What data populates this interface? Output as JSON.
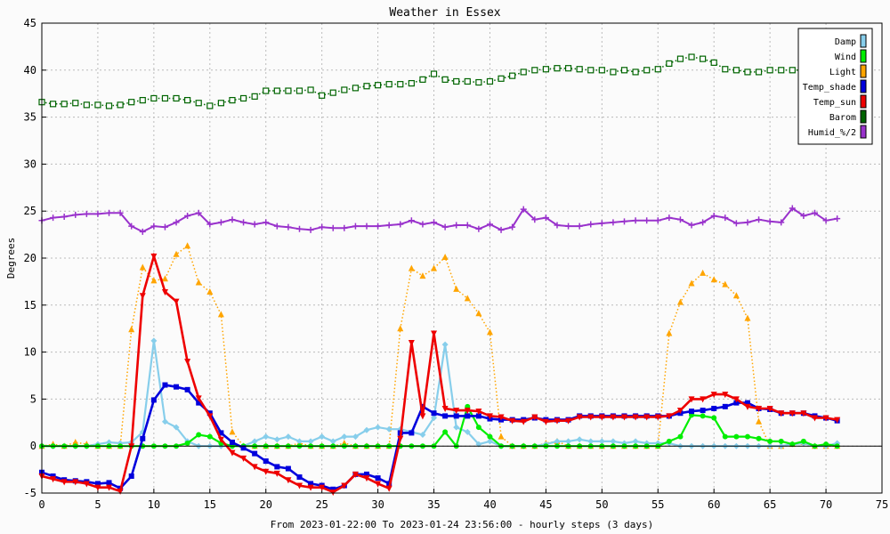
{
  "chart_data": {
    "type": "line",
    "title": "Weather in Essex",
    "xlabel": "From 2023-01-22:00 To 2023-01-24 23:56:00 - hourly steps (3 days)",
    "ylabel": "Degrees",
    "xlim": [
      0,
      75
    ],
    "ylim": [
      -5,
      45
    ],
    "xticks": [
      0,
      5,
      10,
      15,
      20,
      25,
      30,
      35,
      40,
      45,
      50,
      55,
      60,
      65,
      70,
      75
    ],
    "yticks": [
      -5,
      0,
      5,
      10,
      15,
      20,
      25,
      30,
      35,
      40,
      45
    ],
    "grid": true,
    "legend_position": "top-right",
    "series": [
      {
        "name": "Damp",
        "color": "#87ceeb",
        "style": "solid",
        "marker": "diamond",
        "values": [
          0,
          0,
          0,
          0,
          0,
          0.2,
          0.4,
          0.3,
          0.4,
          1.5,
          11.2,
          2.6,
          2,
          0.5,
          0,
          0,
          0,
          0,
          0,
          0.5,
          1,
          0.7,
          1,
          0.5,
          0.5,
          1,
          0.5,
          1,
          1,
          1.7,
          2,
          1.8,
          1.8,
          1.5,
          1.2,
          3,
          10.8,
          2,
          1.5,
          0.2,
          0.5,
          0,
          0,
          0,
          0,
          0.2,
          0.5,
          0.5,
          0.7,
          0.5,
          0.5,
          0.5,
          0.3,
          0.5,
          0.3,
          0.3,
          0.3,
          0,
          0,
          0,
          0,
          0,
          0,
          0,
          0,
          0,
          0,
          0.2,
          0.3,
          0,
          0,
          0.3
        ]
      },
      {
        "name": "Wind",
        "color": "#00ee00",
        "style": "solid",
        "marker": "circle",
        "values": [
          0,
          0,
          0,
          0,
          0,
          0,
          0,
          0,
          0,
          0,
          0,
          0,
          0,
          0.3,
          1.2,
          1,
          0.3,
          0,
          0,
          0,
          0,
          0,
          0,
          0,
          0,
          0,
          0,
          0,
          0,
          0,
          0,
          0,
          0,
          0,
          0,
          0,
          1.5,
          0,
          4.2,
          2,
          1,
          0,
          0,
          0,
          0,
          0,
          0,
          0,
          0,
          0,
          0,
          0,
          0,
          0,
          0,
          0,
          0.5,
          1,
          3.3,
          3.2,
          3,
          1,
          1,
          1,
          0.8,
          0.5,
          0.5,
          0.2,
          0.5,
          0,
          0.2,
          0
        ]
      },
      {
        "name": "Light",
        "color": "#ffa500",
        "style": "dotted",
        "marker": "triangle",
        "values": [
          0,
          0.2,
          0,
          0.4,
          0.2,
          0,
          0,
          0,
          12.4,
          19,
          17.6,
          17.8,
          20.4,
          21.3,
          17.4,
          16.4,
          14,
          1.5,
          0,
          0,
          0,
          0,
          0,
          0.3,
          0,
          0,
          0,
          0.3,
          0,
          0,
          0,
          0,
          12.5,
          18.9,
          18.1,
          18.9,
          20.1,
          16.7,
          15.7,
          14.1,
          12.1,
          1,
          0,
          0,
          0,
          0.3,
          0.5,
          0,
          0,
          0,
          0,
          0,
          0,
          0,
          0,
          0,
          12,
          15.3,
          17.3,
          18.4,
          17.7,
          17.2,
          16,
          13.6,
          2.6,
          0,
          0,
          0.2,
          0.4,
          0,
          0,
          0
        ]
      },
      {
        "name": "Temp_shade",
        "color": "#0000dd",
        "style": "solid",
        "marker": "square",
        "values": [
          -2.8,
          -3.2,
          -3.6,
          -3.7,
          -3.8,
          -4,
          -3.9,
          -4.5,
          -3.2,
          0.8,
          4.9,
          6.5,
          6.3,
          6,
          4.6,
          3.5,
          1.4,
          0.4,
          -0.2,
          -0.8,
          -1.6,
          -2.2,
          -2.4,
          -3.3,
          -4,
          -4.2,
          -4.6,
          -4.2,
          -3,
          -3,
          -3.4,
          -4,
          1.4,
          1.4,
          4.2,
          3.5,
          3.2,
          3.2,
          3.2,
          3.2,
          2.9,
          2.8,
          2.8,
          2.8,
          3,
          2.8,
          2.8,
          2.8,
          3.2,
          3.2,
          3.2,
          3.2,
          3.2,
          3.2,
          3.2,
          3.2,
          3.2,
          3.5,
          3.7,
          3.8,
          4,
          4.2,
          4.6,
          4.6,
          4,
          3.9,
          3.5,
          3.5,
          3.5,
          3.2,
          3,
          2.7
        ]
      },
      {
        "name": "Temp_sun",
        "color": "#ee0000",
        "style": "solid",
        "marker": "triangle-down",
        "values": [
          -3.2,
          -3.5,
          -3.8,
          -3.8,
          -4,
          -4.4,
          -4.4,
          -4.8,
          0,
          16,
          20.2,
          16.4,
          15.4,
          9,
          5.1,
          3.2,
          0.7,
          -0.7,
          -1.3,
          -2.2,
          -2.7,
          -2.9,
          -3.6,
          -4.2,
          -4.4,
          -4.4,
          -4.9,
          -4.2,
          -3,
          -3.4,
          -4,
          -4.5,
          0.8,
          11,
          3.2,
          12,
          4,
          3.8,
          3.8,
          3.7,
          3.2,
          3.1,
          2.7,
          2.6,
          3.1,
          2.6,
          2.7,
          2.7,
          3.1,
          3.1,
          3.1,
          3.1,
          3.1,
          3.1,
          3.1,
          3.1,
          3.2,
          3.8,
          5,
          5,
          5.5,
          5.5,
          5,
          4.2,
          4,
          4,
          3.5,
          3.5,
          3.5,
          3,
          3,
          2.8
        ]
      },
      {
        "name": "Barom",
        "color": "#006400",
        "style": "dotted",
        "marker": "open-square",
        "values": [
          36.6,
          36.4,
          36.4,
          36.5,
          36.3,
          36.3,
          36.2,
          36.3,
          36.6,
          36.8,
          37,
          37,
          37,
          36.8,
          36.5,
          36.2,
          36.5,
          36.8,
          37,
          37.2,
          37.8,
          37.8,
          37.8,
          37.8,
          37.9,
          37.3,
          37.6,
          37.9,
          38.1,
          38.3,
          38.4,
          38.5,
          38.5,
          38.6,
          39,
          39.6,
          39,
          38.8,
          38.8,
          38.7,
          38.8,
          39.1,
          39.4,
          39.8,
          40,
          40.1,
          40.2,
          40.2,
          40.1,
          40,
          40,
          39.8,
          40,
          39.8,
          40,
          40.1,
          40.7,
          41.2,
          41.4,
          41.2,
          40.8,
          40.1,
          40,
          39.8,
          39.8,
          40,
          40,
          40,
          40,
          40,
          40,
          40
        ]
      },
      {
        "name": "Humid_%/2",
        "color": "#9932cc",
        "style": "solid",
        "marker": "plus",
        "values": [
          24,
          24.3,
          24.4,
          24.6,
          24.7,
          24.7,
          24.8,
          24.8,
          23.4,
          22.8,
          23.4,
          23.3,
          23.8,
          24.5,
          24.8,
          23.6,
          23.8,
          24.1,
          23.8,
          23.6,
          23.8,
          23.4,
          23.3,
          23.1,
          23,
          23.3,
          23.2,
          23.2,
          23.4,
          23.4,
          23.4,
          23.5,
          23.6,
          24,
          23.6,
          23.8,
          23.3,
          23.5,
          23.5,
          23.1,
          23.6,
          23,
          23.3,
          25.2,
          24.1,
          24.3,
          23.5,
          23.4,
          23.4,
          23.6,
          23.7,
          23.8,
          23.9,
          24,
          24,
          24,
          24.3,
          24.1,
          23.5,
          23.8,
          24.5,
          24.3,
          23.7,
          23.8,
          24.1,
          23.9,
          23.8,
          25.3,
          24.5,
          24.8,
          24,
          24.2
        ]
      }
    ]
  }
}
